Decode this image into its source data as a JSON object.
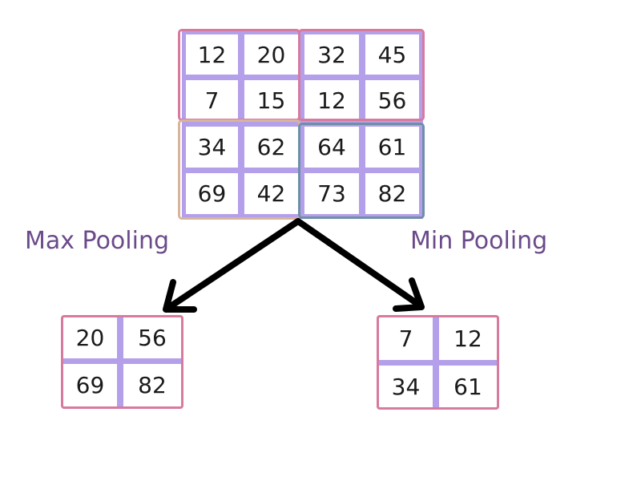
{
  "colors": {
    "grid_line": "#b4a0ea",
    "pink": "#d87a9e",
    "tan": "#d9b49c",
    "steel_blue": "#6f8fa8",
    "label": "#6b4a8a",
    "arrow": "#000000"
  },
  "input_matrix": [
    [
      "12",
      "20",
      "32",
      "45"
    ],
    [
      "7",
      "15",
      "12",
      "56"
    ],
    [
      "34",
      "62",
      "64",
      "61"
    ],
    [
      "69",
      "42",
      "73",
      "82"
    ]
  ],
  "max_pooling": {
    "label": "Max Pooling",
    "matrix": [
      [
        "20",
        "56"
      ],
      [
        "69",
        "82"
      ]
    ]
  },
  "min_pooling": {
    "label": "Min Pooling",
    "matrix": [
      [
        "7",
        "12"
      ],
      [
        "34",
        "61"
      ]
    ]
  }
}
